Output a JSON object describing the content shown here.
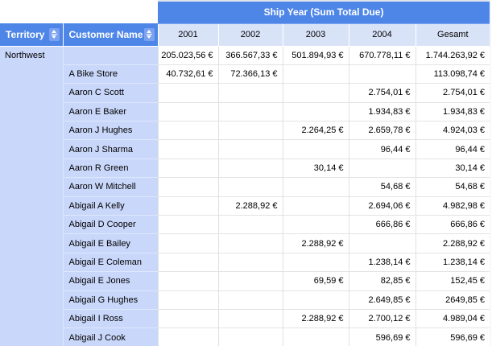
{
  "header": {
    "span_title": "Ship Year (Sum Total Due)",
    "row_fields": [
      {
        "label": "Territory"
      },
      {
        "label": "Customer Name"
      }
    ],
    "columns": [
      "2001",
      "2002",
      "2003",
      "2004",
      "Gesamt"
    ]
  },
  "territory_group": "Northwest",
  "rows": [
    {
      "customer": "",
      "values": [
        "205.023,56 €",
        "366.567,33 €",
        "501.894,93 €",
        "670.778,11 €",
        "1.744.263,92 €"
      ]
    },
    {
      "customer": "A Bike Store",
      "values": [
        "40.732,61 €",
        "72.366,13 €",
        "",
        "",
        "113.098,74 €"
      ]
    },
    {
      "customer": "Aaron C Scott",
      "values": [
        "",
        "",
        "",
        "2.754,01 €",
        "2.754,01 €"
      ]
    },
    {
      "customer": "Aaron E Baker",
      "values": [
        "",
        "",
        "",
        "1.934,83 €",
        "1.934,83 €"
      ]
    },
    {
      "customer": "Aaron J Hughes",
      "values": [
        "",
        "",
        "2.264,25 €",
        "2.659,78 €",
        "4.924,03 €"
      ]
    },
    {
      "customer": "Aaron J Sharma",
      "values": [
        "",
        "",
        "",
        "96,44 €",
        "96,44 €"
      ]
    },
    {
      "customer": "Aaron R Green",
      "values": [
        "",
        "",
        "30,14 €",
        "",
        "30,14 €"
      ]
    },
    {
      "customer": "Aaron W Mitchell",
      "values": [
        "",
        "",
        "",
        "54,68 €",
        "54,68 €"
      ]
    },
    {
      "customer": "Abigail A Kelly",
      "values": [
        "",
        "2.288,92 €",
        "",
        "2.694,06 €",
        "4.982,98 €"
      ]
    },
    {
      "customer": "Abigail D Cooper",
      "values": [
        "",
        "",
        "",
        "666,86 €",
        "666,86 €"
      ]
    },
    {
      "customer": "Abigail E Bailey",
      "values": [
        "",
        "",
        "2.288,92 €",
        "",
        "2.288,92 €"
      ]
    },
    {
      "customer": "Abigail E Coleman",
      "values": [
        "",
        "",
        "",
        "1.238,14 €",
        "1.238,14 €"
      ]
    },
    {
      "customer": "Abigail E Jones",
      "values": [
        "",
        "",
        "69,59 €",
        "82,85 €",
        "152,45 €"
      ]
    },
    {
      "customer": "Abigail G Hughes",
      "values": [
        "",
        "",
        "",
        "2.649,85 €",
        "2649,85 €"
      ]
    },
    {
      "customer": "Abigail I Ross",
      "values": [
        "",
        "",
        "2.288,92 €",
        "2.700,12 €",
        "4.989,04 €"
      ]
    },
    {
      "customer": "Abigail J Cook",
      "values": [
        "",
        "",
        "",
        "596,69 €",
        "596,69 €"
      ]
    }
  ],
  "icons": {
    "sort": "sort-updown-icon"
  },
  "colors": {
    "header_blue": "#4e86e8",
    "year_header_bg": "#d9e3f8",
    "row_header_bg": "#c9d7fa",
    "grid_line": "#e0e0e0",
    "header_text": "#ffffff",
    "cell_text": "#000000"
  }
}
